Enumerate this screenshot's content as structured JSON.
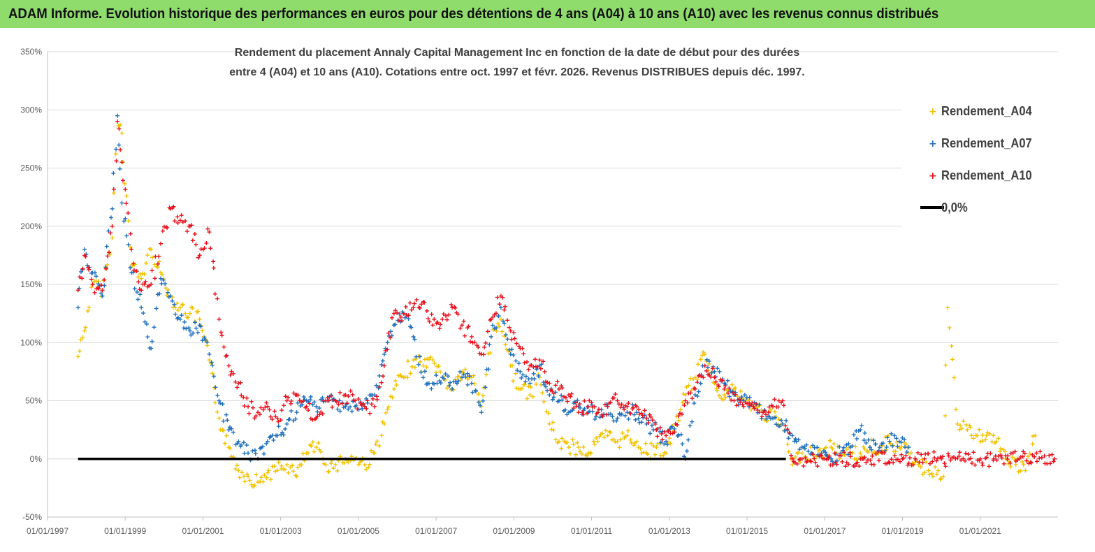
{
  "banner": {
    "title": "ADAM Informe. Evolution historique des performances en euros pour des détentions de 4 ans (A04) à 10 ans (A10) avec les revenus connus distribués"
  },
  "chart_data": {
    "type": "scatter",
    "title_lines": [
      "Rendement du placement Annaly Capital Management Inc en fonction de la date de début pour des durées",
      "entre 4 (A04) et 10 ans (A10).  Cotations entre oct. 1997 et févr. 2026. Revenus DISTRIBUES depuis déc. 1997."
    ],
    "xlabel": "",
    "ylabel": "",
    "x_range": [
      "01/01/1997",
      "01/01/2023"
    ],
    "ylim": [
      -0.5,
      3.5
    ],
    "y_ticks": [
      "-50%",
      "0%",
      "50%",
      "100%",
      "150%",
      "200%",
      "250%",
      "300%",
      "350%"
    ],
    "y_tick_values": [
      -0.5,
      0,
      0.5,
      1.0,
      1.5,
      2.0,
      2.5,
      3.0,
      3.5
    ],
    "x_ticks": [
      "01/01/1997",
      "01/01/1999",
      "01/01/2001",
      "01/01/2003",
      "01/01/2005",
      "01/01/2007",
      "01/01/2009",
      "01/01/2011",
      "01/01/2013",
      "01/01/2015",
      "01/01/2017",
      "01/01/2019",
      "01/01/2021"
    ],
    "x_tick_years": [
      1997,
      1999,
      2001,
      2003,
      2005,
      2007,
      2009,
      2011,
      2013,
      2015,
      2017,
      2019,
      2021
    ],
    "grid": "horizontal",
    "legend_position": "top-right",
    "marker": "+",
    "series": [
      {
        "name": "Rendement_A04",
        "color": "#f2c200",
        "x": [
          "1997-10-15",
          "1997-12-15",
          "1998-03-01",
          "1998-06-01",
          "1998-09-01",
          "1998-10-20",
          "1998-12-01",
          "1999-03-01",
          "1999-06-01",
          "1999-09-01",
          "1999-12-01",
          "2000-03-01",
          "2000-06-01",
          "2000-09-01",
          "2000-12-01",
          "2001-03-01",
          "2001-06-01",
          "2001-09-01",
          "2001-12-01",
          "2002-03-01",
          "2002-06-01",
          "2002-09-01",
          "2002-12-01",
          "2003-03-01",
          "2003-06-01",
          "2003-09-01",
          "2003-12-01",
          "2004-03-01",
          "2004-06-01",
          "2004-09-01",
          "2004-12-01",
          "2005-03-01",
          "2005-06-01",
          "2005-09-01",
          "2005-12-01",
          "2006-03-01",
          "2006-06-01",
          "2006-09-01",
          "2006-12-01",
          "2007-03-01",
          "2007-06-01",
          "2007-09-01",
          "2007-12-01",
          "2008-03-01",
          "2008-06-01",
          "2008-09-01",
          "2008-12-01",
          "2009-03-01",
          "2009-06-01",
          "2009-09-01",
          "2009-12-01",
          "2010-03-01",
          "2010-06-01",
          "2010-09-01",
          "2010-12-01",
          "2011-03-01",
          "2011-06-01",
          "2011-09-01",
          "2011-12-01",
          "2012-03-01",
          "2012-06-01",
          "2012-09-01",
          "2012-12-01",
          "2013-03-01",
          "2013-06-01",
          "2013-09-01",
          "2013-12-01",
          "2014-03-01",
          "2014-06-01",
          "2014-09-01",
          "2014-12-01",
          "2015-03-01",
          "2015-06-01",
          "2015-09-01",
          "2015-12-01",
          "2016-03-01",
          "2016-06-01",
          "2016-09-01",
          "2016-12-01",
          "2017-03-01",
          "2017-06-01",
          "2017-09-01",
          "2017-12-01",
          "2018-03-01",
          "2018-06-01",
          "2018-09-01",
          "2018-12-01",
          "2019-03-01",
          "2019-06-01",
          "2019-09-01",
          "2019-12-01",
          "2020-01-20",
          "2020-03-01",
          "2020-06-01",
          "2020-09-01",
          "2020-12-01",
          "2021-03-01",
          "2021-06-01",
          "2021-09-01",
          "2021-12-01",
          "2022-03-01",
          "2022-06-01"
        ],
        "y": [
          0.88,
          1.1,
          1.5,
          1.45,
          1.9,
          2.95,
          2.8,
          1.65,
          1.55,
          1.8,
          1.6,
          1.4,
          1.3,
          1.25,
          1.2,
          0.85,
          0.35,
          0.1,
          -0.1,
          -0.15,
          -0.2,
          -0.12,
          -0.1,
          -0.05,
          -0.15,
          0.05,
          0.1,
          -0.05,
          -0.05,
          0.0,
          0.0,
          -0.05,
          0.05,
          0.3,
          0.6,
          0.7,
          0.85,
          0.8,
          0.85,
          0.7,
          0.6,
          0.75,
          0.7,
          0.45,
          1.05,
          1.2,
          0.8,
          0.6,
          0.55,
          0.7,
          0.3,
          0.15,
          0.1,
          0.1,
          0.05,
          0.15,
          0.2,
          0.15,
          0.2,
          0.15,
          0.05,
          0.1,
          0.05,
          0.3,
          0.55,
          0.7,
          0.9,
          0.65,
          0.55,
          0.6,
          0.5,
          0.45,
          0.4,
          0.35,
          0.3,
          -0.05,
          0.05,
          0.05,
          0.05,
          0.1,
          0.05,
          0.05,
          0.05,
          0.1,
          0.1,
          0.15,
          0.1,
          0.05,
          -0.05,
          -0.1,
          -0.1,
          -0.15,
          1.3,
          0.3,
          0.25,
          0.2,
          0.2,
          0.15,
          0.0,
          -0.05,
          -0.1,
          0.2
        ]
      },
      {
        "name": "Rendement_A07",
        "color": "#1f6fbd",
        "x": [
          "1997-10-15",
          "1997-12-15",
          "1998-03-01",
          "1998-06-01",
          "1998-09-01",
          "1998-10-20",
          "1998-12-01",
          "1999-03-01",
          "1999-06-01",
          "1999-09-01",
          "1999-12-01",
          "2000-03-01",
          "2000-06-01",
          "2000-09-01",
          "2000-12-01",
          "2001-03-01",
          "2001-06-01",
          "2001-09-01",
          "2001-12-01",
          "2002-03-01",
          "2002-06-01",
          "2002-09-01",
          "2002-12-01",
          "2003-03-01",
          "2003-06-01",
          "2003-09-01",
          "2003-12-01",
          "2004-03-01",
          "2004-06-01",
          "2004-09-01",
          "2004-12-01",
          "2005-03-01",
          "2005-06-01",
          "2005-09-01",
          "2005-12-01",
          "2006-03-01",
          "2006-06-01",
          "2006-09-01",
          "2006-12-01",
          "2007-03-01",
          "2007-06-01",
          "2007-09-01",
          "2007-12-01",
          "2008-03-01",
          "2008-06-01",
          "2008-09-01",
          "2008-12-01",
          "2009-03-01",
          "2009-06-01",
          "2009-09-01",
          "2009-12-01",
          "2010-03-01",
          "2010-06-01",
          "2010-09-01",
          "2010-12-01",
          "2011-03-01",
          "2011-06-01",
          "2011-09-01",
          "2011-12-01",
          "2012-03-01",
          "2012-06-01",
          "2012-09-01",
          "2012-12-01",
          "2013-03-01",
          "2013-06-01",
          "2013-09-01",
          "2013-12-01",
          "2014-03-01",
          "2014-06-01",
          "2014-09-01",
          "2014-12-01",
          "2015-03-01",
          "2015-06-01",
          "2015-09-01",
          "2015-12-01",
          "2016-03-01",
          "2016-06-01",
          "2016-09-01",
          "2016-12-01",
          "2017-03-01",
          "2017-06-01",
          "2017-09-01",
          "2017-12-01",
          "2018-03-01",
          "2018-06-01",
          "2018-09-01",
          "2018-12-01",
          "2019-03-01"
        ],
        "y": [
          1.3,
          1.8,
          1.6,
          1.4,
          2.15,
          2.95,
          2.2,
          1.6,
          1.3,
          0.95,
          1.55,
          1.4,
          1.2,
          1.1,
          1.15,
          0.9,
          0.5,
          0.25,
          0.15,
          0.05,
          0.0,
          0.15,
          0.2,
          0.3,
          0.4,
          0.5,
          0.45,
          0.5,
          0.5,
          0.45,
          0.45,
          0.45,
          0.55,
          0.9,
          1.15,
          1.25,
          1.05,
          0.7,
          0.65,
          0.7,
          0.6,
          0.7,
          0.65,
          0.4,
          1.05,
          1.3,
          0.9,
          0.75,
          0.65,
          0.8,
          0.55,
          0.5,
          0.4,
          0.45,
          0.4,
          0.4,
          0.45,
          0.35,
          0.4,
          0.4,
          0.3,
          0.25,
          0.15,
          0.3,
          0.0,
          0.55,
          0.8,
          0.75,
          0.65,
          0.55,
          0.5,
          0.45,
          0.4,
          0.35,
          0.3,
          0.2,
          0.1,
          0.05,
          0.05,
          0.0,
          0.05,
          0.1,
          0.25,
          0.1,
          0.1,
          0.15,
          0.15,
          0.1
        ]
      },
      {
        "name": "Rendement_A10",
        "color": "#e8101c",
        "x": [
          "1997-10-15",
          "1997-12-15",
          "1998-03-01",
          "1998-06-01",
          "1998-09-01",
          "1998-10-20",
          "1998-12-01",
          "1999-03-01",
          "1999-06-01",
          "1999-09-01",
          "1999-12-01",
          "2000-03-01",
          "2000-06-01",
          "2000-09-01",
          "2000-12-01",
          "2001-03-01",
          "2001-06-01",
          "2001-09-01",
          "2001-12-01",
          "2002-03-01",
          "2002-06-01",
          "2002-09-01",
          "2002-12-01",
          "2003-03-01",
          "2003-06-01",
          "2003-09-01",
          "2003-12-01",
          "2004-03-01",
          "2004-06-01",
          "2004-09-01",
          "2004-12-01",
          "2005-03-01",
          "2005-06-01",
          "2005-09-01",
          "2005-12-01",
          "2006-03-01",
          "2006-06-01",
          "2006-09-01",
          "2006-12-01",
          "2007-03-01",
          "2007-06-01",
          "2007-09-01",
          "2007-12-01",
          "2008-03-01",
          "2008-06-01",
          "2008-09-01",
          "2008-12-01",
          "2009-03-01",
          "2009-06-01",
          "2009-09-01",
          "2009-12-01",
          "2010-03-01",
          "2010-06-01",
          "2010-09-01",
          "2010-12-01",
          "2011-03-01",
          "2011-06-01",
          "2011-09-01",
          "2011-12-01",
          "2012-03-01",
          "2012-06-01",
          "2012-09-01",
          "2012-12-01",
          "2013-03-01",
          "2013-06-01",
          "2013-09-01",
          "2013-12-01",
          "2014-03-01",
          "2014-06-01",
          "2014-09-01",
          "2014-12-01",
          "2015-03-01",
          "2015-06-01",
          "2015-09-01",
          "2015-12-01",
          "2016-03-01",
          "2016-06-01",
          "2017-01-01",
          "2018-01-01",
          "2019-01-01",
          "2020-01-01",
          "2021-01-01",
          "2022-01-01",
          "2022-12-01"
        ],
        "y": [
          1.45,
          1.75,
          1.5,
          1.45,
          2.0,
          2.9,
          2.55,
          1.8,
          1.45,
          1.5,
          1.85,
          2.15,
          2.05,
          2.0,
          1.75,
          1.95,
          1.2,
          0.8,
          0.65,
          0.45,
          0.4,
          0.45,
          0.35,
          0.5,
          0.55,
          0.45,
          0.35,
          0.5,
          0.5,
          0.55,
          0.5,
          0.45,
          0.45,
          0.8,
          1.25,
          1.25,
          1.3,
          1.35,
          1.15,
          1.2,
          1.3,
          1.15,
          1.05,
          0.9,
          1.2,
          1.4,
          1.1,
          0.95,
          0.8,
          0.85,
          0.65,
          0.6,
          0.55,
          0.4,
          0.45,
          0.4,
          0.45,
          0.5,
          0.45,
          0.45,
          0.35,
          0.25,
          0.2,
          0.3,
          0.5,
          0.6,
          0.8,
          0.7,
          0.6,
          0.5,
          0.45,
          0.45,
          0.4,
          0.45,
          0.5,
          0.0,
          0.0,
          0.0,
          0.0,
          0.0,
          0.0,
          0.0,
          0.0,
          0.0
        ]
      },
      {
        "name": "0,0%",
        "color": "#000000",
        "x": [
          "1997-10-15",
          "2016-01-01"
        ],
        "y": [
          0,
          0
        ]
      }
    ]
  }
}
